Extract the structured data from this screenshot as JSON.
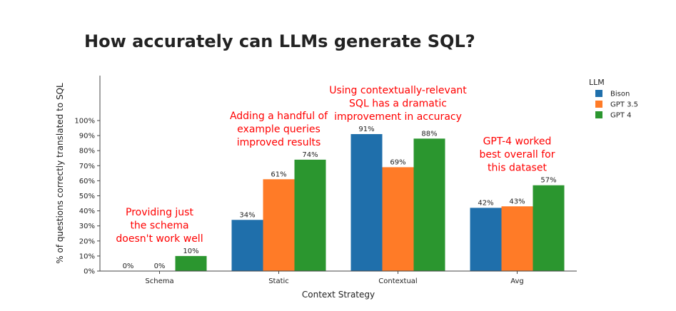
{
  "chart_data": {
    "type": "bar",
    "title": "How accurately can LLMs generate SQL?",
    "xlabel": "Context Strategy",
    "ylabel": "% of questions correctly translated to SQL",
    "categories": [
      "Schema",
      "Static",
      "Contextual",
      "Avg"
    ],
    "series": [
      {
        "name": "Bison",
        "values": [
          0,
          34,
          91,
          42
        ],
        "labels": [
          "0%",
          "34%",
          "91%",
          "42%"
        ],
        "color": "#1f6fab"
      },
      {
        "name": "GPT 3.5",
        "values": [
          0,
          61,
          69,
          43
        ],
        "labels": [
          "0%",
          "61%",
          "69%",
          "43%"
        ],
        "color": "#ff7b27"
      },
      {
        "name": "GPT 4",
        "values": [
          10,
          74,
          88,
          57
        ],
        "labels": [
          "10%",
          "74%",
          "88%",
          "57%"
        ],
        "color": "#2b962f"
      }
    ],
    "ylim": [
      0,
      100
    ],
    "y_ticks": [
      "0%",
      "10%",
      "20%",
      "30%",
      "40%",
      "50%",
      "60%",
      "70%",
      "80%",
      "90%",
      "100%"
    ],
    "legend": {
      "title": "LLM",
      "placement": "right"
    },
    "annotations": [
      {
        "category": "Schema",
        "lines": [
          "Providing just",
          "the schema",
          "doesn't work well"
        ]
      },
      {
        "category": "Static",
        "lines": [
          "Adding a handful of",
          "example queries",
          "improved results"
        ]
      },
      {
        "category": "Contextual",
        "lines": [
          "Using contextually-relevant",
          "SQL has a dramatic",
          "improvement in accuracy"
        ]
      },
      {
        "category": "Avg",
        "lines": [
          "GPT-4 worked",
          "best overall for",
          "this dataset"
        ]
      }
    ],
    "annotation_color": "#ff0000"
  }
}
